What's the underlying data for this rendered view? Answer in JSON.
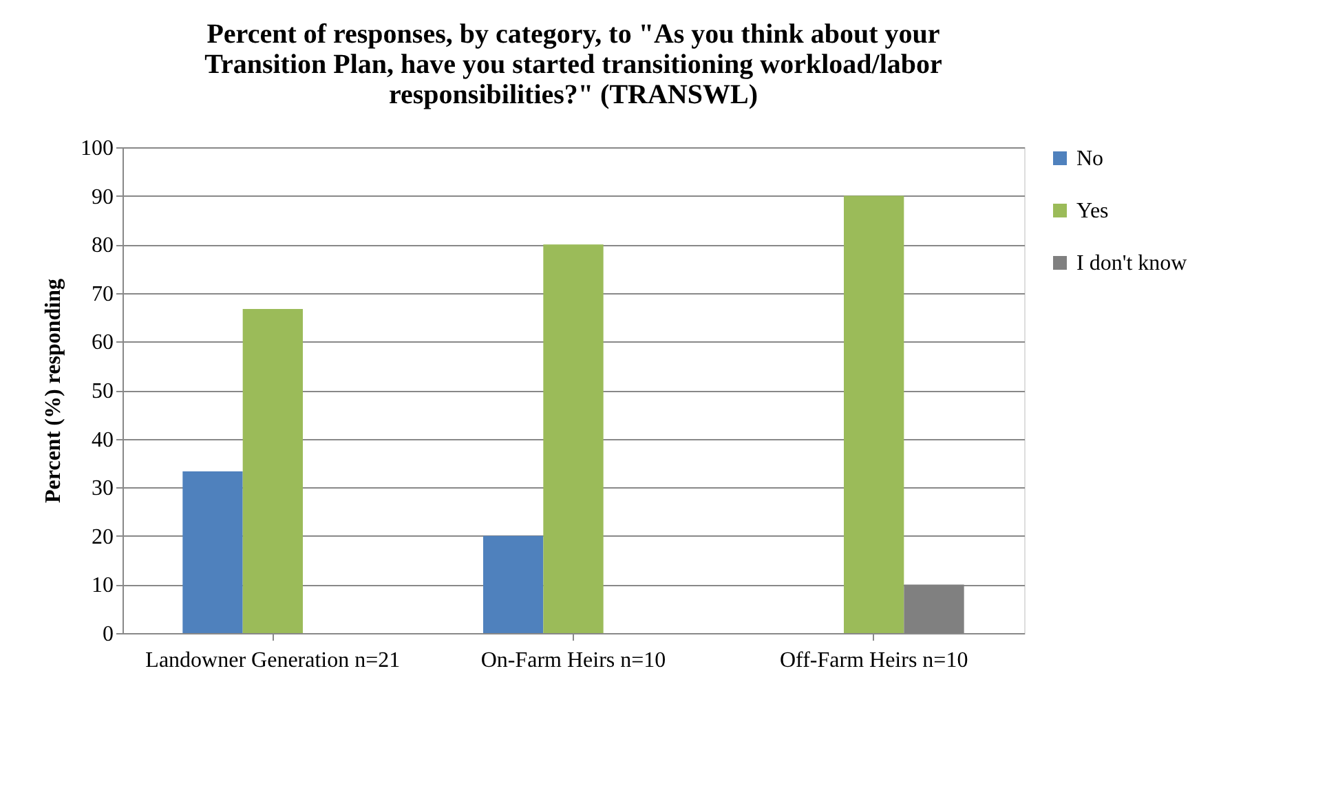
{
  "chart_data": {
    "type": "bar",
    "title": "Percent of responses, by category, to \"As you think about your Transition Plan, have you started transitioning workload/labor responsibilities?\" (TRANSWL)",
    "ylabel": "Percent (%) responding",
    "categories": [
      "Landowner Generation n=21",
      "On-Farm Heirs n=10",
      "Off-Farm Heirs n=10"
    ],
    "series": [
      {
        "name": "No",
        "color": "#4f81bd",
        "values": [
          33.3,
          20,
          0
        ]
      },
      {
        "name": "Yes",
        "color": "#9bbb59",
        "values": [
          66.7,
          80,
          90
        ]
      },
      {
        "name": "I don't know",
        "color": "#808080",
        "values": [
          0,
          0,
          10
        ]
      }
    ],
    "ylim": [
      0,
      100
    ],
    "yticks": [
      0,
      10,
      20,
      30,
      40,
      50,
      60,
      70,
      80,
      90,
      100
    ],
    "grid": "y",
    "legend": "right"
  }
}
